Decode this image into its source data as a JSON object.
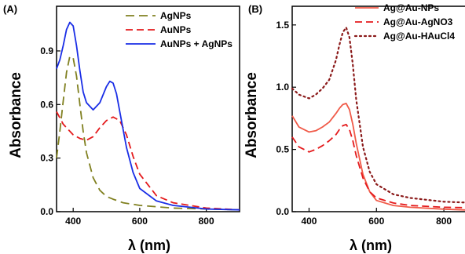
{
  "chart_data": [
    {
      "panel_label": "(A)",
      "type": "line",
      "xlabel": "λ (nm)",
      "ylabel": "Absorbance",
      "xlim": [
        350,
        900
      ],
      "ylim": [
        0,
        1.15
      ],
      "xticks": [
        400,
        600,
        800
      ],
      "xtick_labels": [
        "400",
        "600",
        "800"
      ],
      "yticks": [
        0,
        0.3,
        0.6,
        0.9
      ],
      "ytick_labels": [
        "0.0",
        "0.3",
        "0.6",
        "0.9"
      ],
      "grid": false,
      "legend_position": "top-right",
      "series": [
        {
          "name": "AgNPs",
          "color": "#808020",
          "dash": "long-dash",
          "x": [
            350,
            360,
            370,
            380,
            390,
            400,
            410,
            420,
            430,
            440,
            460,
            480,
            500,
            520,
            550,
            600,
            700,
            800,
            900
          ],
          "y": [
            0.3,
            0.45,
            0.62,
            0.78,
            0.87,
            0.86,
            0.76,
            0.6,
            0.45,
            0.33,
            0.19,
            0.12,
            0.085,
            0.07,
            0.05,
            0.035,
            0.02,
            0.015,
            0.01
          ]
        },
        {
          "name": "AuNPs",
          "color": "#e41a1c",
          "dash": "dash",
          "x": [
            350,
            370,
            400,
            420,
            440,
            460,
            480,
            500,
            520,
            540,
            560,
            580,
            600,
            650,
            700,
            800,
            900
          ],
          "y": [
            0.56,
            0.49,
            0.43,
            0.41,
            0.4,
            0.42,
            0.47,
            0.51,
            0.53,
            0.51,
            0.43,
            0.31,
            0.21,
            0.09,
            0.05,
            0.02,
            0.01
          ]
        },
        {
          "name": "AuNPs + AgNPs",
          "color": "#1a2ee6",
          "dash": "solid",
          "x": [
            350,
            360,
            370,
            380,
            390,
            400,
            410,
            420,
            430,
            440,
            460,
            480,
            500,
            510,
            520,
            530,
            540,
            560,
            580,
            600,
            650,
            700,
            800,
            900
          ],
          "y": [
            0.8,
            0.85,
            0.93,
            1.02,
            1.06,
            1.04,
            0.93,
            0.79,
            0.67,
            0.61,
            0.57,
            0.61,
            0.7,
            0.73,
            0.72,
            0.66,
            0.56,
            0.36,
            0.22,
            0.13,
            0.06,
            0.035,
            0.015,
            0.01
          ]
        }
      ]
    },
    {
      "panel_label": "(B)",
      "type": "line",
      "xlabel": "λ (nm)",
      "ylabel": "Absorbance",
      "xlim": [
        350,
        900
      ],
      "ylim": [
        0,
        1.65
      ],
      "xticks": [
        400,
        600,
        800
      ],
      "xtick_labels": [
        "400",
        "600",
        "800"
      ],
      "yticks": [
        0,
        0.5,
        1.0,
        1.5
      ],
      "ytick_labels": [
        "0.0",
        "0.5",
        "1.0",
        "1.5"
      ],
      "grid": false,
      "legend_position": "top-right",
      "series": [
        {
          "name": "Ag@Au-NPs",
          "color": "#f05a48",
          "dash": "solid",
          "x": [
            350,
            370,
            400,
            420,
            440,
            460,
            480,
            490,
            500,
            510,
            520,
            530,
            540,
            560,
            580,
            600,
            650,
            700,
            800,
            900
          ],
          "y": [
            0.77,
            0.68,
            0.64,
            0.65,
            0.68,
            0.72,
            0.79,
            0.83,
            0.86,
            0.87,
            0.82,
            0.7,
            0.55,
            0.3,
            0.16,
            0.09,
            0.05,
            0.035,
            0.02,
            0.01
          ]
        },
        {
          "name": "Ag@Au-AgNO3",
          "color": "#e41a1c",
          "dash": "dash",
          "x": [
            350,
            370,
            400,
            420,
            440,
            460,
            480,
            490,
            500,
            510,
            520,
            530,
            540,
            560,
            580,
            600,
            650,
            700,
            800,
            900
          ],
          "y": [
            0.6,
            0.52,
            0.48,
            0.5,
            0.53,
            0.57,
            0.62,
            0.66,
            0.69,
            0.7,
            0.66,
            0.57,
            0.45,
            0.27,
            0.16,
            0.11,
            0.07,
            0.05,
            0.035,
            0.03
          ]
        },
        {
          "name": "Ag@Au-HAuCl4",
          "color": "#8b1a1a",
          "dash": "dot",
          "x": [
            350,
            370,
            400,
            420,
            440,
            460,
            480,
            490,
            500,
            510,
            520,
            530,
            540,
            560,
            580,
            600,
            650,
            700,
            800,
            900
          ],
          "y": [
            0.99,
            0.94,
            0.91,
            0.94,
            0.99,
            1.06,
            1.22,
            1.34,
            1.44,
            1.48,
            1.4,
            1.18,
            0.9,
            0.52,
            0.32,
            0.22,
            0.14,
            0.11,
            0.08,
            0.07
          ]
        }
      ]
    }
  ]
}
